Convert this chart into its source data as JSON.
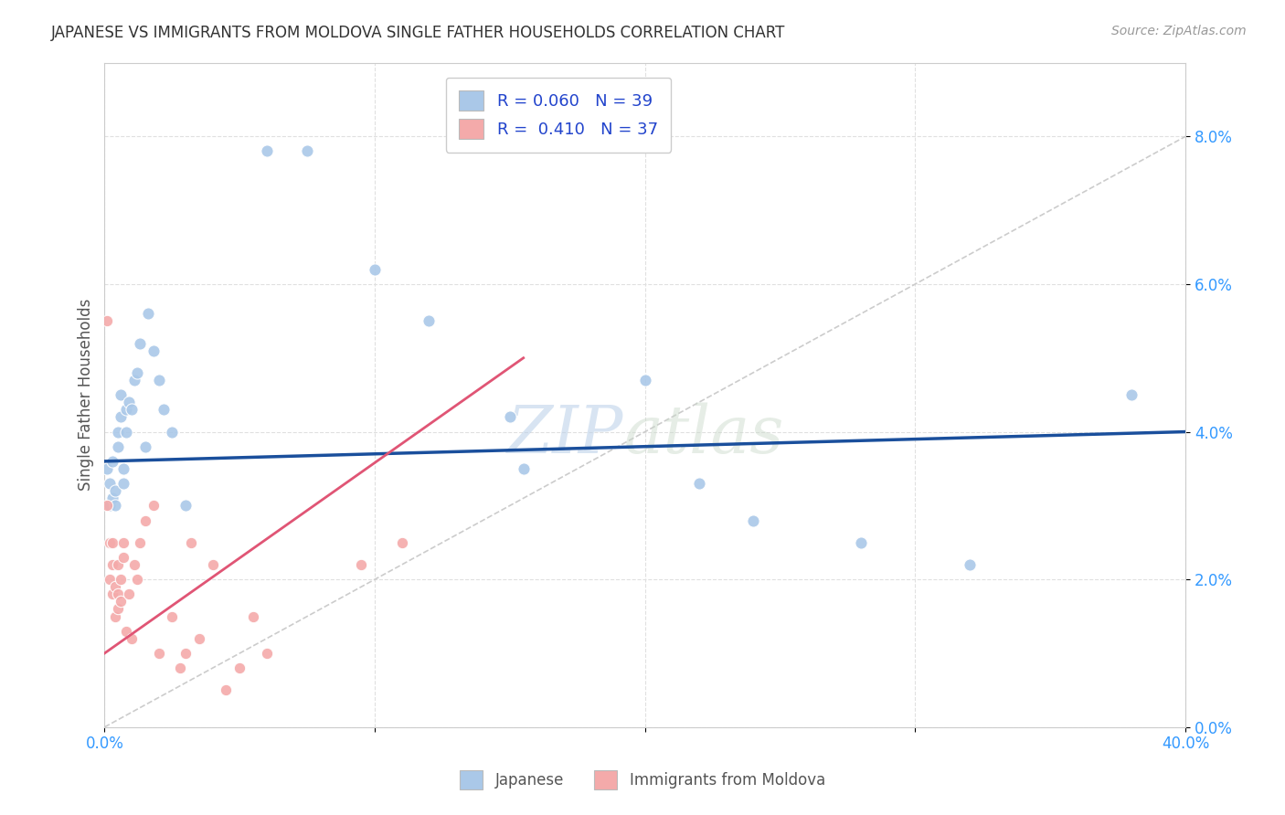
{
  "title": "JAPANESE VS IMMIGRANTS FROM MOLDOVA SINGLE FATHER HOUSEHOLDS CORRELATION CHART",
  "source": "Source: ZipAtlas.com",
  "ylabel": "Single Father Households",
  "watermark": "ZIPatlas",
  "xlim": [
    0.0,
    0.4
  ],
  "ylim": [
    0.0,
    0.09
  ],
  "xticks": [
    0.0,
    0.1,
    0.2,
    0.3,
    0.4
  ],
  "yticks": [
    0.0,
    0.02,
    0.04,
    0.06,
    0.08
  ],
  "legend_r1": "R = 0.060   N = 39",
  "legend_r2": "R =  0.410   N = 37",
  "japanese_color": "#aac8e8",
  "moldova_color": "#f4aaaa",
  "trend_japanese_color": "#1a4f9c",
  "trend_moldova_color": "#e05575",
  "diagonal_color": "#cccccc",
  "background_color": "#ffffff",
  "grid_color": "#e0e0e0",
  "jp_x": [
    0.001,
    0.002,
    0.002,
    0.003,
    0.003,
    0.004,
    0.004,
    0.005,
    0.005,
    0.006,
    0.006,
    0.007,
    0.007,
    0.008,
    0.008,
    0.009,
    0.01,
    0.011,
    0.012,
    0.013,
    0.015,
    0.016,
    0.018,
    0.02,
    0.022,
    0.025,
    0.06,
    0.075,
    0.1,
    0.12,
    0.15,
    0.155,
    0.2,
    0.22,
    0.24,
    0.28,
    0.32,
    0.38,
    0.03
  ],
  "jp_y": [
    0.035,
    0.03,
    0.033,
    0.031,
    0.036,
    0.03,
    0.032,
    0.038,
    0.04,
    0.042,
    0.045,
    0.035,
    0.033,
    0.04,
    0.043,
    0.044,
    0.043,
    0.047,
    0.048,
    0.052,
    0.038,
    0.056,
    0.051,
    0.047,
    0.043,
    0.04,
    0.078,
    0.078,
    0.062,
    0.055,
    0.042,
    0.035,
    0.047,
    0.033,
    0.028,
    0.025,
    0.022,
    0.045,
    0.03
  ],
  "md_x": [
    0.001,
    0.001,
    0.002,
    0.002,
    0.003,
    0.003,
    0.003,
    0.004,
    0.004,
    0.005,
    0.005,
    0.005,
    0.006,
    0.006,
    0.007,
    0.007,
    0.008,
    0.009,
    0.01,
    0.011,
    0.012,
    0.013,
    0.015,
    0.018,
    0.02,
    0.025,
    0.028,
    0.03,
    0.032,
    0.035,
    0.04,
    0.045,
    0.05,
    0.055,
    0.06,
    0.095,
    0.11
  ],
  "md_y": [
    0.055,
    0.03,
    0.025,
    0.02,
    0.022,
    0.018,
    0.025,
    0.015,
    0.019,
    0.016,
    0.018,
    0.022,
    0.02,
    0.017,
    0.023,
    0.025,
    0.013,
    0.018,
    0.012,
    0.022,
    0.02,
    0.025,
    0.028,
    0.03,
    0.01,
    0.015,
    0.008,
    0.01,
    0.025,
    0.012,
    0.022,
    0.005,
    0.008,
    0.015,
    0.01,
    0.022,
    0.025
  ],
  "jp_trend_x": [
    0.0,
    0.4
  ],
  "jp_trend_y": [
    0.036,
    0.04
  ],
  "md_trend_x": [
    0.0,
    0.155
  ],
  "md_trend_y": [
    0.01,
    0.05
  ]
}
